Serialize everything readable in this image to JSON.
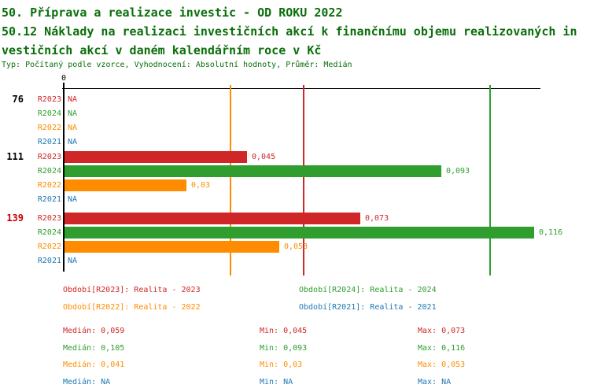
{
  "colors": {
    "title": "#0a6e0a",
    "axis": "#000000",
    "highlight_group_label": "#cc0000",
    "series_red": "#cf2727",
    "series_green": "#2f9e2f",
    "series_orange": "#ff8c00",
    "series_blue": "#1f77b4"
  },
  "header": {
    "title_line1": "50. Příprava a realizace investic - OD ROKU 2022",
    "title_line2": "50.12 Náklady na realizaci investičních akcí k finančnímu objemu realizovaných in",
    "title_line3": "vestičních akcí v daném kalendářním roce v Kč",
    "meta": "Typ: Počítaný podle vzorce, Vyhodnocení: Absolutní hodnoty, Průměr: Medián"
  },
  "chart_data": {
    "type": "bar",
    "orientation": "horizontal",
    "value_axis": {
      "min": 0,
      "max": 0.117,
      "zero_tick_label": "0",
      "grid": false
    },
    "series": [
      {
        "id": "R2023",
        "name": "Realita - 2023",
        "color": "#cf2727"
      },
      {
        "id": "R2024",
        "name": "Realita - 2024",
        "color": "#2f9e2f"
      },
      {
        "id": "R2022",
        "name": "Realita - 2022",
        "color": "#ff8c00"
      },
      {
        "id": "R2021",
        "name": "Realita - 2021",
        "color": "#1f77b4"
      }
    ],
    "groups": [
      {
        "label": "76",
        "highlight": false,
        "values": [
          null,
          null,
          null,
          null
        ],
        "displays": [
          "NA",
          "NA",
          "NA",
          "NA"
        ]
      },
      {
        "label": "111",
        "highlight": false,
        "values": [
          0.045,
          0.093,
          0.03,
          null
        ],
        "displays": [
          "0,045",
          "0,093",
          "0,03",
          "NA"
        ]
      },
      {
        "label": "139",
        "highlight": true,
        "values": [
          0.073,
          0.116,
          0.053,
          null
        ],
        "displays": [
          "0,073",
          "0,116",
          "0,053",
          "NA"
        ]
      }
    ],
    "median_lines": [
      {
        "series": "R2023",
        "value": 0.059
      },
      {
        "series": "R2024",
        "value": 0.105
      },
      {
        "series": "R2022",
        "value": 0.041
      }
    ],
    "legend_position": "bottom"
  },
  "legend": {
    "items": [
      {
        "label": "Období[R2023]: Realita - 2023",
        "color": "#cf2727"
      },
      {
        "label": "Období[R2024]: Realita - 2024",
        "color": "#2f9e2f"
      },
      {
        "label": "Období[R2022]: Realita - 2022",
        "color": "#ff8c00"
      },
      {
        "label": "Období[R2021]: Realita - 2021",
        "color": "#1f77b4"
      }
    ]
  },
  "stats": {
    "rows": [
      {
        "median": "Medián: 0,059",
        "min": "Min: 0,045",
        "max": "Max: 0,073",
        "color": "#cf2727"
      },
      {
        "median": "Medián: 0,105",
        "min": "Min: 0,093",
        "max": "Max: 0,116",
        "color": "#2f9e2f"
      },
      {
        "median": "Medián: 0,041",
        "min": "Min: 0,03",
        "max": "Max: 0,053",
        "color": "#ff8c00"
      },
      {
        "median": "Medián: NA",
        "min": "Min: NA",
        "max": "Max: NA",
        "color": "#1f77b4"
      }
    ]
  }
}
